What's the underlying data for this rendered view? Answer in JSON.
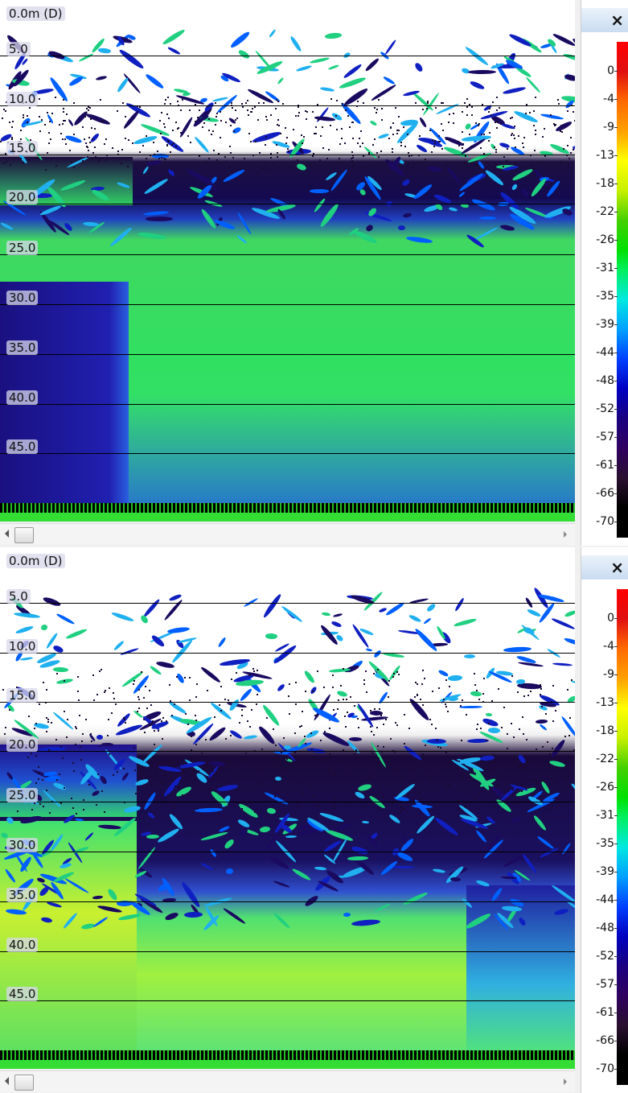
{
  "panels": [
    {
      "depth_labels": [
        "0.0m (D)",
        "5.0",
        "10.0",
        "15.0",
        "20.0",
        "25.0",
        "30.0",
        "35.0",
        "40.0",
        "45.0"
      ],
      "close": "×",
      "scale_labels": [
        "0",
        "-4",
        "-9",
        "-13",
        "-18",
        "-22",
        "-26",
        "-31",
        "-35",
        "-39",
        "-44",
        "-48",
        "-52",
        "-57",
        "-61",
        "-66",
        "-70"
      ]
    },
    {
      "depth_labels": [
        "0.0m (D)",
        "5.0",
        "10.0",
        "15.0",
        "20.0",
        "25.0",
        "30.0",
        "35.0",
        "40.0",
        "45.0"
      ],
      "close": "×",
      "scale_labels": [
        "0",
        "-4",
        "-9",
        "-13",
        "-18",
        "-22",
        "-26",
        "-31",
        "-35",
        "-39",
        "-44",
        "-48",
        "-52",
        "-57",
        "-61",
        "-66",
        "-70"
      ]
    }
  ]
}
